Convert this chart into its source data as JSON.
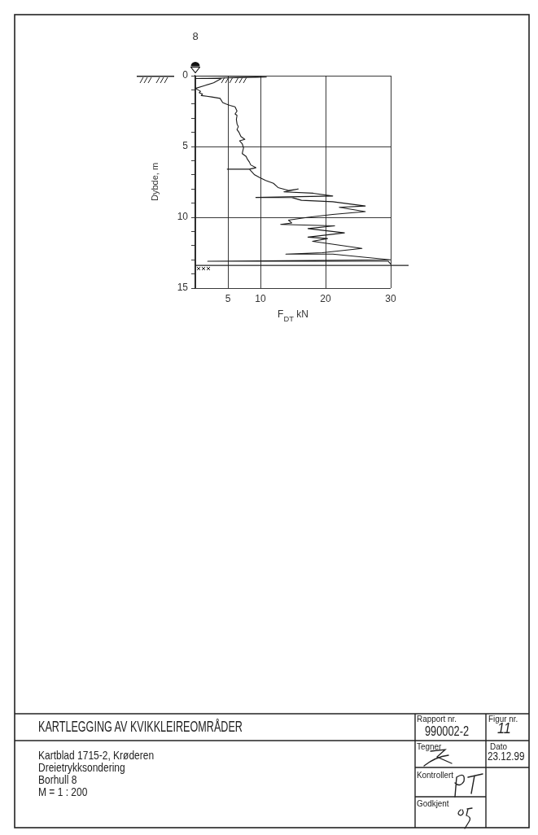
{
  "chart_data": {
    "type": "line",
    "title": "8",
    "xlabel": "F$_{DT}$ kN",
    "ylabel": "Dybde, m",
    "xlim": [
      0,
      30
    ],
    "xticks": [
      {
        "value": 0,
        "label": null
      },
      5,
      10,
      20,
      30
    ],
    "ylim": [
      15,
      0
    ],
    "yticks": [
      0,
      {
        "value": 1,
        "label": null
      },
      {
        "value": 2,
        "label": null
      },
      {
        "value": 3,
        "label": null
      },
      {
        "value": 4,
        "label": null
      },
      5,
      {
        "value": 6,
        "label": null
      },
      {
        "value": 7,
        "label": null
      },
      {
        "value": 8,
        "label": null
      },
      {
        "value": 9,
        "label": null
      },
      10,
      {
        "value": 11,
        "label": null
      },
      {
        "value": 12,
        "label": null
      },
      {
        "value": 13,
        "label": null
      },
      {
        "value": 14,
        "label": null
      },
      15
    ],
    "grid": true,
    "marker": "none",
    "line_style": "solid",
    "series": [
      {
        "color": "#1a1a1a",
        "x": [
          0,
          10.9,
          0,
          4.0,
          2.8,
          1.4,
          0,
          0.8,
          0.6,
          1.1,
          0.9,
          2.5,
          3.8,
          4.2,
          4.7,
          5.3,
          6.1,
          6.3,
          6.4,
          6.1,
          6.4,
          6.3,
          6.4,
          6.6,
          6.4,
          6.7,
          7.0,
          7.6,
          6.8,
          7.2,
          7.4,
          7.2,
          7.8,
          8.0,
          8.3,
          8.5,
          9.3,
          8.3,
          4.9,
          8.3,
          8.7,
          9.1,
          9.9,
          10.8,
          12.0,
          12.7,
          14.3,
          15.8,
          13.6,
          18.1,
          21.1,
          9.3,
          14.8,
          16.3,
          21.1,
          26.1,
          22.1,
          26.1,
          21.1,
          17.3,
          14.3,
          14.8,
          13.1,
          21.4,
          17.3,
          22.9,
          17.3,
          20.3,
          18.0,
          25.6,
          19.5,
          13.9,
          21.1,
          30,
          1.9,
          29.6,
          30
        ],
        "values": [
          0,
          0.1,
          0.2,
          0.2,
          0.5,
          0.7,
          0.9,
          1.1,
          1.2,
          1.3,
          1.4,
          1.5,
          1.6,
          1.9,
          2.0,
          2.1,
          2.2,
          2.4,
          2.5,
          2.7,
          2.8,
          3.1,
          3.4,
          3.6,
          3.8,
          4.0,
          4.3,
          4.5,
          4.6,
          4.8,
          5.1,
          5.5,
          5.7,
          5.9,
          6.1,
          6.3,
          6.5,
          6.6,
          6.6,
          6.6,
          6.8,
          7.0,
          7.2,
          7.4,
          7.6,
          7.9,
          8.1,
          8.0,
          8.2,
          8.3,
          8.5,
          8.6,
          8.6,
          8.8,
          8.9,
          9.2,
          9.3,
          9.6,
          9.8,
          10.0,
          10.2,
          10.4,
          10.5,
          10.6,
          10.8,
          11.1,
          11.4,
          11.5,
          11.7,
          12.2,
          12.5,
          12.6,
          12.6,
          13.0,
          13.1,
          13.1,
          13.3
        ]
      }
    ],
    "ref_lines": [
      {
        "axis": "y",
        "value": 13.4
      }
    ],
    "annotations": [
      "KARTLEGGING AV KVIKKLEIREOMRÅDER",
      "Kartblad 1715-2, Krøderen",
      "Dreietrykksondering",
      "Borhull 8",
      "M = 1 : 200",
      "Rapport nr.",
      "990002-2",
      "Figur nr.",
      "11",
      "Tegner",
      "Dato",
      "23.12.99",
      "Kontrollert",
      "Godkjent"
    ]
  }
}
